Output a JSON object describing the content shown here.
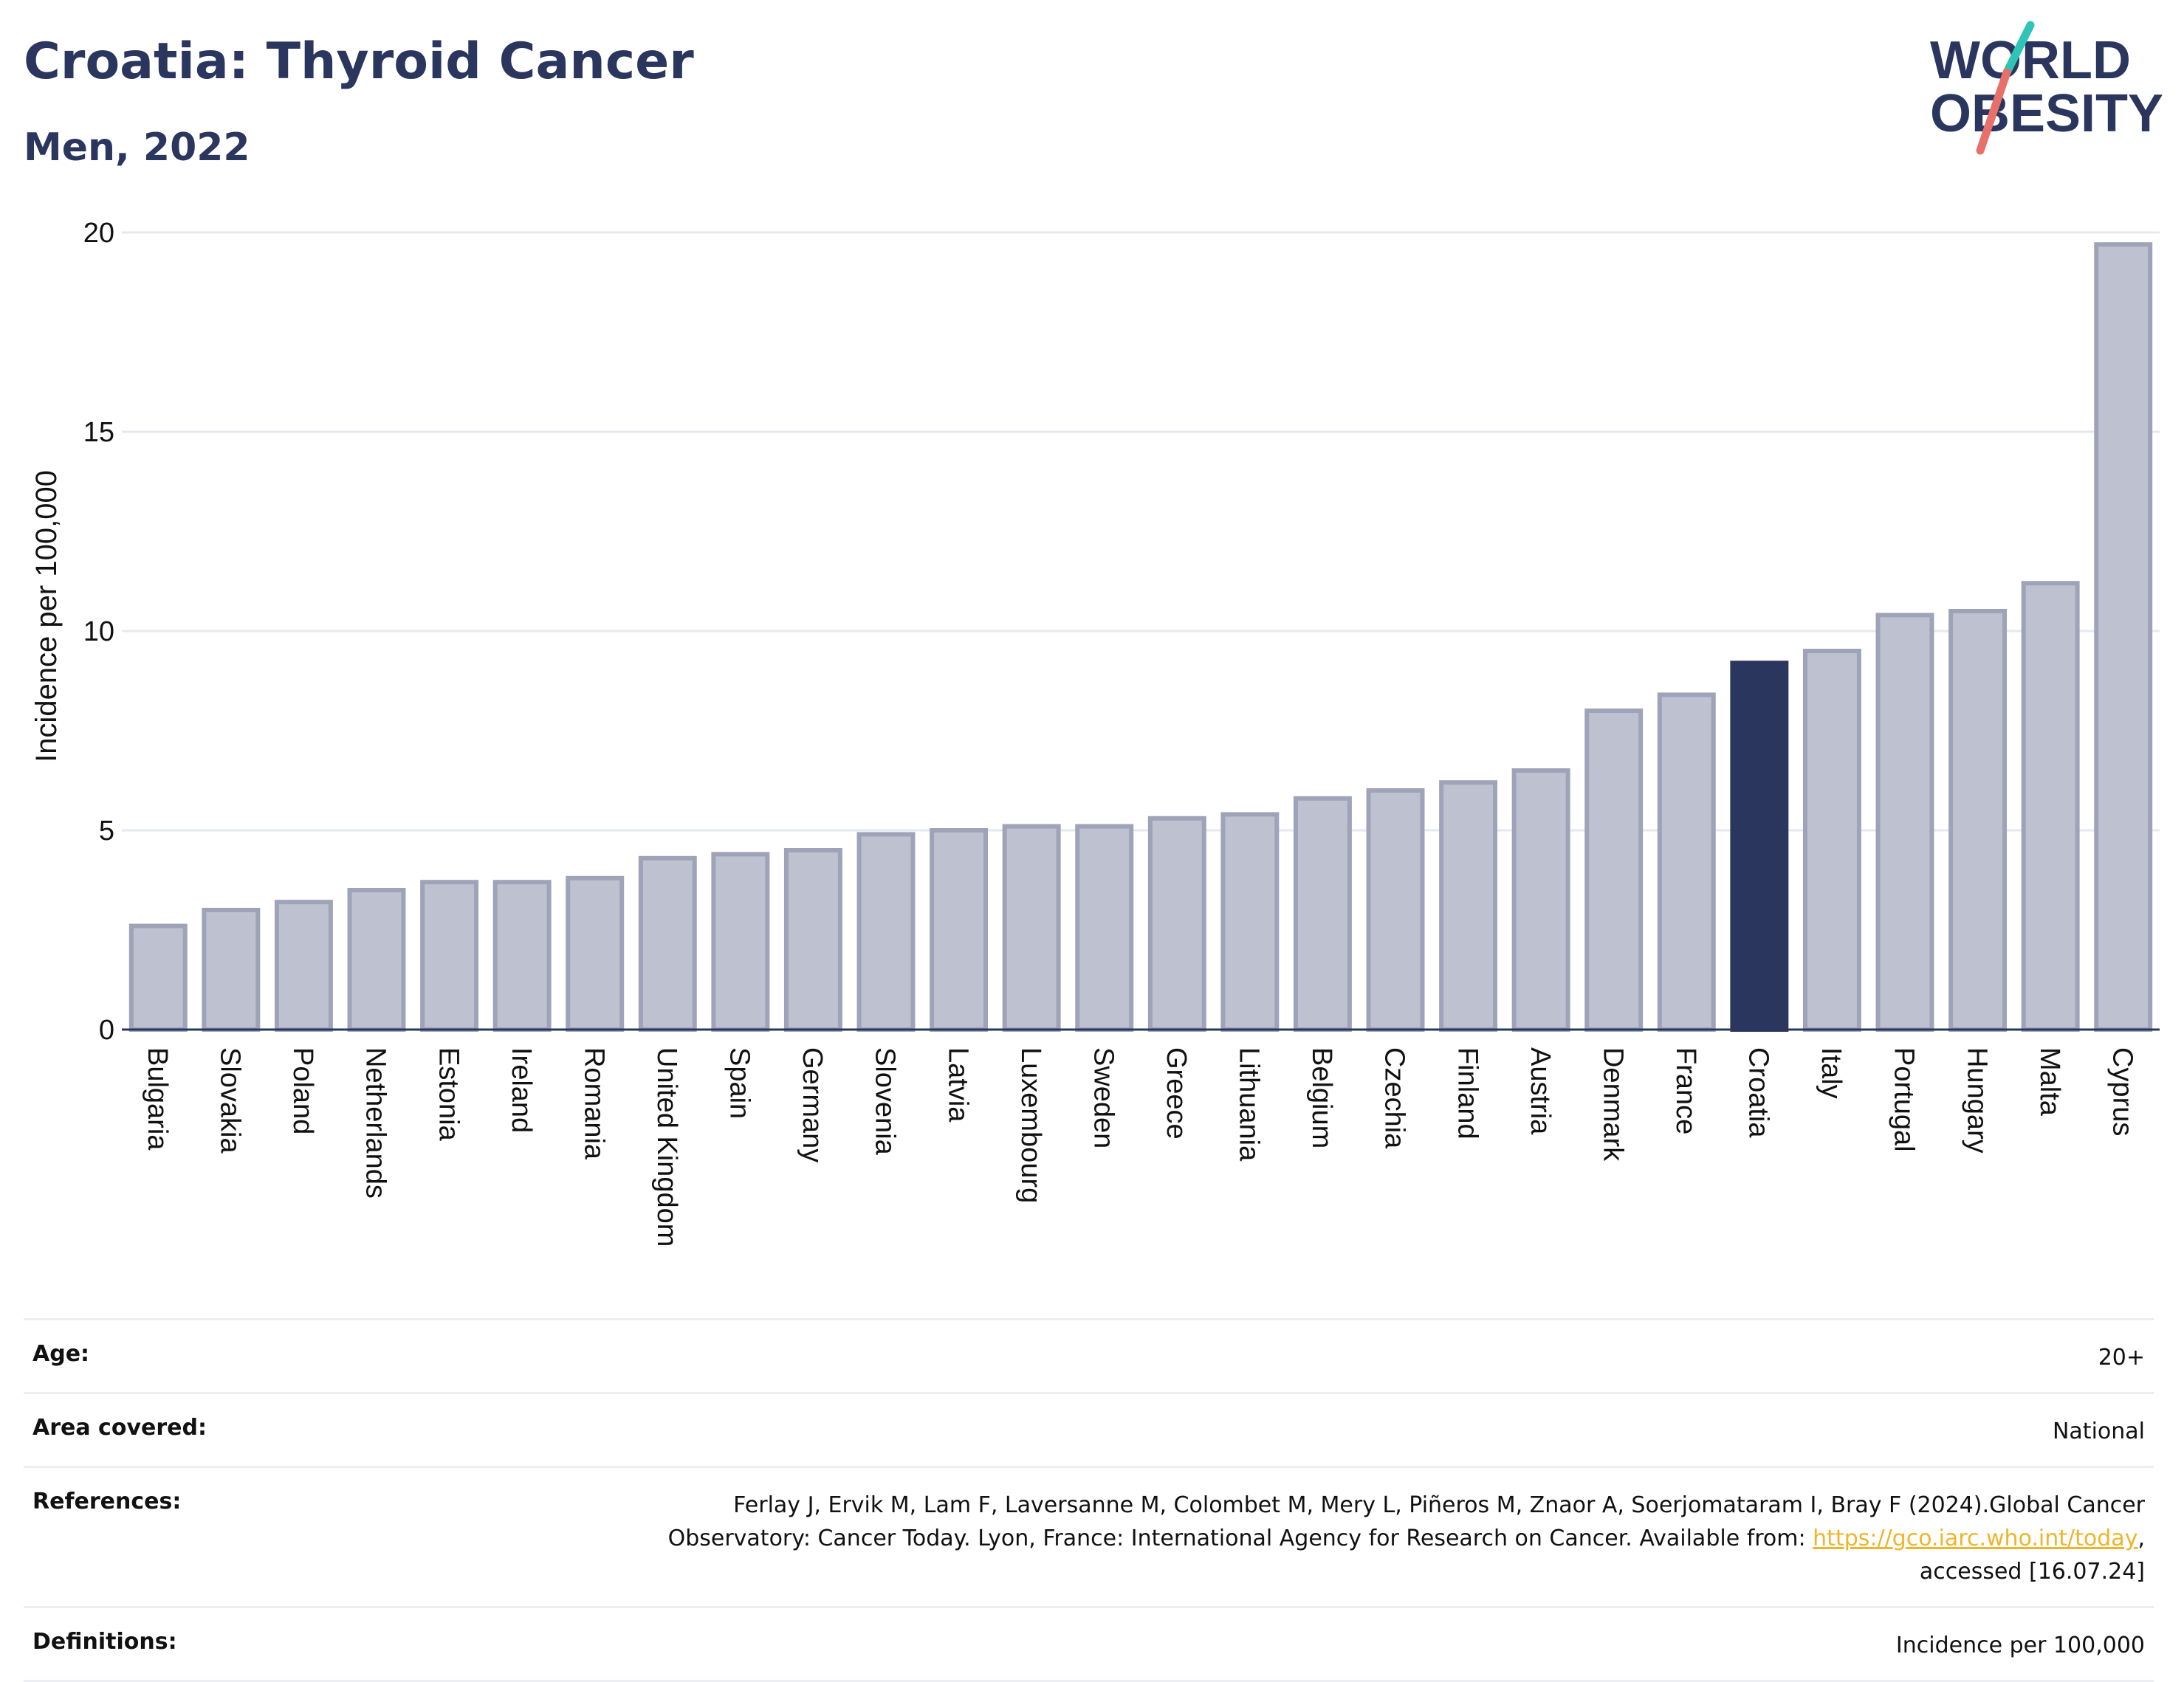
{
  "header": {
    "title": "Croatia: Thyroid Cancer",
    "subtitle": "Men, 2022"
  },
  "logo": {
    "line1": "WORLD",
    "line2": "OBESITY",
    "accent_teal": "#2ec4b6",
    "accent_red": "#e8706a"
  },
  "chart_data": {
    "type": "bar",
    "ylabel": "Incidence per 100,000",
    "ylim": [
      0,
      20
    ],
    "yticks": [
      0,
      5,
      10,
      15,
      20
    ],
    "highlight": "Croatia",
    "colors": {
      "bar": "#bec1cf",
      "bar_border": "#9ea3b8",
      "highlight": "#2b365f"
    },
    "categories": [
      "Bulgaria",
      "Slovakia",
      "Poland",
      "Netherlands",
      "Estonia",
      "Ireland",
      "Romania",
      "United Kingdom",
      "Spain",
      "Germany",
      "Slovenia",
      "Latvia",
      "Luxembourg",
      "Sweden",
      "Greece",
      "Lithuania",
      "Belgium",
      "Czechia",
      "Finland",
      "Austria",
      "Denmark",
      "France",
      "Croatia",
      "Italy",
      "Portugal",
      "Hungary",
      "Malta",
      "Cyprus"
    ],
    "values": [
      2.6,
      3.0,
      3.2,
      3.5,
      3.7,
      3.7,
      3.8,
      4.3,
      4.4,
      4.5,
      4.9,
      5.0,
      5.1,
      5.1,
      5.3,
      5.4,
      5.8,
      6.0,
      6.2,
      6.5,
      8.0,
      8.4,
      9.2,
      9.5,
      10.4,
      10.5,
      11.2,
      19.7
    ]
  },
  "info": {
    "age_label": "Age:",
    "age_value": "20+",
    "area_label": "Area covered:",
    "area_value": "National",
    "references_label": "References:",
    "references_line1": "Ferlay J, Ervik M, Lam F, Laversanne M, Colombet M, Mery L, Piñeros M, Znaor A, Soerjomataram I, Bray F (2024).Global Cancer",
    "references_line2": "Observatory: Cancer Today. Lyon, France: International Agency for Research on Cancer. Available from: ",
    "references_link": "https://gco.iarc.who.int/today",
    "references_line2_end": ",",
    "references_line3": "accessed [16.07.24]",
    "definitions_label": "Definitions:",
    "definitions_value": "Incidence per 100,000"
  }
}
